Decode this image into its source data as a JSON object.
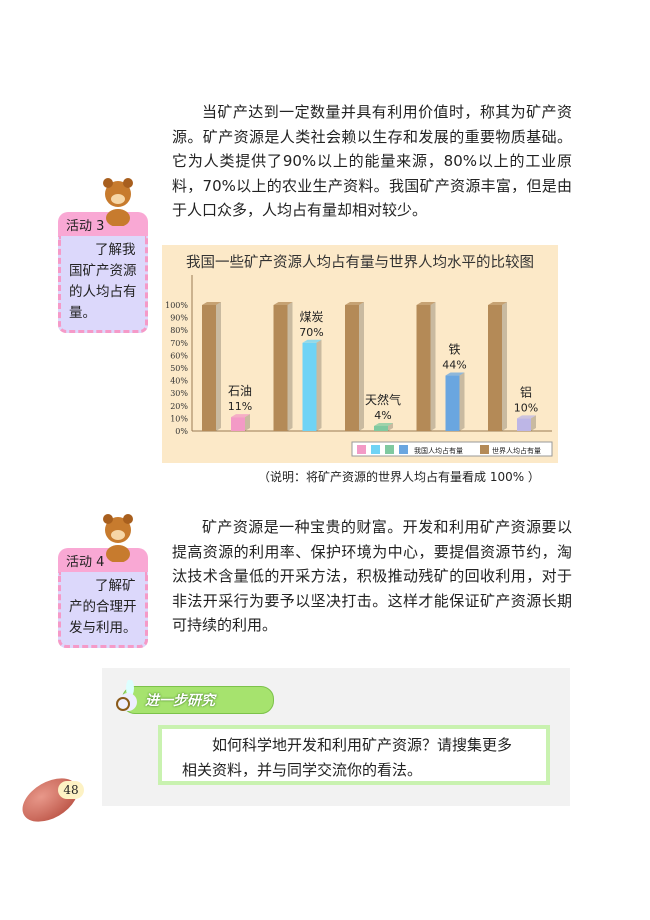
{
  "paragraph1": "当矿产达到一定数量并具有利用价值时，称其为矿产资源。矿产资源是人类社会赖以生存和发展的重要物质基础。它为人类提供了90%以上的能量来源，80%以上的工业原料，70%以上的农业生产资料。我国矿产资源丰富，但是由于人口众多，人均占有量却相对较少。",
  "activity3": {
    "label": "活动 3",
    "text": "了解我国矿产资源的人均占有量。"
  },
  "activity4": {
    "label": "活动 4",
    "text": "了解矿产的合理开发与利用。"
  },
  "paragraph2": "矿产资源是一种宝贵的财富。开发和利用矿产资源要以提高资源的利用率、保护环境为中心，要提倡资源节约，淘汰技术含量低的开采方法，积极推动残矿的回收利用，对于非法开采行为要予以坚决打击。这样才能保证矿产资源长期可持续的利用。",
  "chart_note": "（说明：将矿产资源的世界人均占有量看成 100% ）",
  "research": {
    "banner": "进一步研究",
    "line1": "如何科学地开发和利用矿产资源？请搜集更多",
    "line2": "相关资料，并与同学交流你的看法。"
  },
  "page_number": "48",
  "chart_data": {
    "type": "bar",
    "title": "我国一些矿产资源人均占有量与世界人均水平的比较图",
    "categories": [
      "石油",
      "煤炭",
      "天然气",
      "铁",
      "铝"
    ],
    "series": [
      {
        "name": "世界人均占有量",
        "values": [
          100,
          100,
          100,
          100,
          100
        ],
        "color": "#b48a57"
      },
      {
        "name": "我国人均占有量",
        "values": [
          11,
          70,
          4,
          44,
          10
        ],
        "colors": [
          "#f39ac6",
          "#6fd3f5",
          "#7fc9a0",
          "#6aa6e0",
          "#bdb6e6"
        ]
      }
    ],
    "data_labels": [
      "11%",
      "70%",
      "4%",
      "44%",
      "10%"
    ],
    "yticks": [
      "0%",
      "10%",
      "20%",
      "30%",
      "40%",
      "50%",
      "60%",
      "70%",
      "80%",
      "90%",
      "100%"
    ],
    "ylim": [
      0,
      100
    ],
    "legend": "bottom-right"
  }
}
